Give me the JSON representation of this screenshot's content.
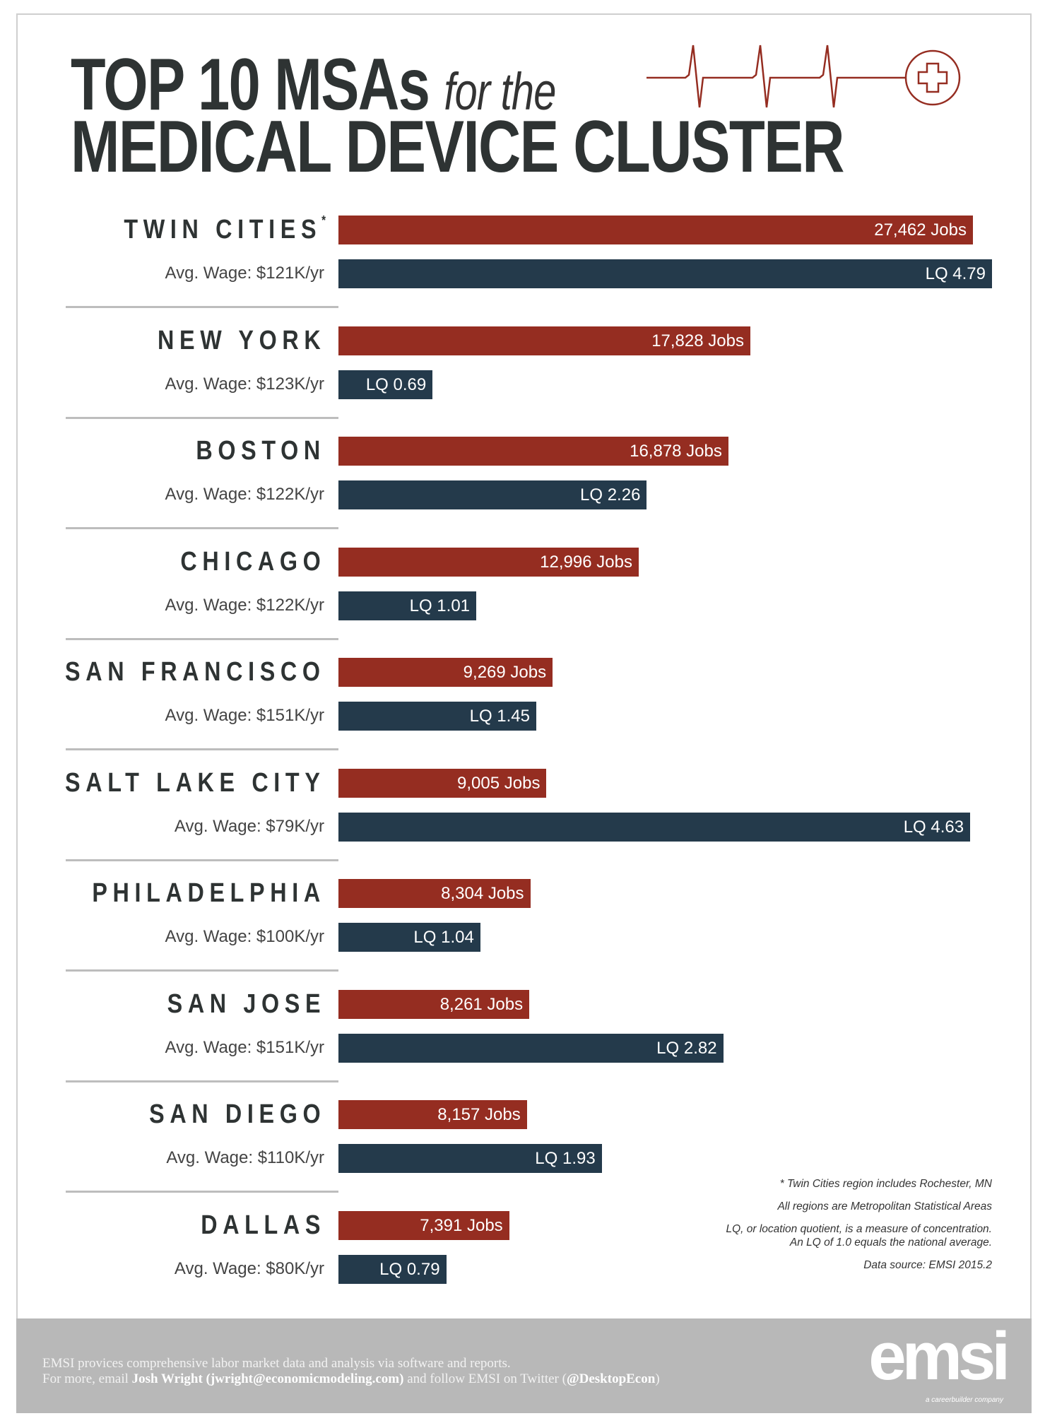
{
  "title": {
    "line1_bold": "TOP 10 MSAs",
    "line1_italic": "for the",
    "line2": "MEDICAL DEVICE CLUSTER"
  },
  "colors": {
    "jobs": "#952d21",
    "lq": "#243a4b",
    "text": "#2e3333"
  },
  "chart_data": {
    "type": "bar",
    "categories": [
      "TWIN CITIES",
      "NEW YORK",
      "BOSTON",
      "CHICAGO",
      "SAN FRANCISCO",
      "SALT LAKE CITY",
      "PHILADELPHIA",
      "SAN JOSE",
      "SAN DIEGO",
      "DALLAS"
    ],
    "series": [
      {
        "name": "Jobs",
        "values": [
          27462,
          17828,
          16878,
          12996,
          9269,
          9005,
          8304,
          8261,
          8157,
          7391
        ]
      },
      {
        "name": "LQ",
        "values": [
          4.79,
          0.69,
          2.26,
          1.01,
          1.45,
          4.63,
          1.04,
          2.82,
          1.93,
          0.79
        ]
      }
    ],
    "rows": [
      {
        "city": "TWIN CITIES",
        "mark": "*",
        "wage": "Avg. Wage: $121K/yr",
        "jobs_label": "27,462 Jobs",
        "lq_label": "LQ 4.79"
      },
      {
        "city": "NEW YORK",
        "mark": "",
        "wage": "Avg. Wage: $123K/yr",
        "jobs_label": "17,828 Jobs",
        "lq_label": "LQ 0.69"
      },
      {
        "city": "BOSTON",
        "mark": "",
        "wage": "Avg. Wage: $122K/yr",
        "jobs_label": "16,878 Jobs",
        "lq_label": "LQ 2.26"
      },
      {
        "city": "CHICAGO",
        "mark": "",
        "wage": "Avg. Wage: $122K/yr",
        "jobs_label": "12,996 Jobs",
        "lq_label": "LQ 1.01"
      },
      {
        "city": "SAN FRANCISCO",
        "mark": "",
        "wage": "Avg. Wage: $151K/yr",
        "jobs_label": "9,269 Jobs",
        "lq_label": "LQ 1.45"
      },
      {
        "city": "SALT LAKE CITY",
        "mark": "",
        "wage": "Avg. Wage: $79K/yr",
        "jobs_label": "9,005 Jobs",
        "lq_label": "LQ  4.63"
      },
      {
        "city": "PHILADELPHIA",
        "mark": "",
        "wage": "Avg. Wage: $100K/yr",
        "jobs_label": "8,304 Jobs",
        "lq_label": "LQ  1.04"
      },
      {
        "city": "SAN JOSE",
        "mark": "",
        "wage": "Avg. Wage: $151K/yr",
        "jobs_label": "8,261 Jobs",
        "lq_label": "LQ  2.82"
      },
      {
        "city": "SAN DIEGO",
        "mark": "",
        "wage": "Avg. Wage: $110K/yr",
        "jobs_label": "8,157 Jobs",
        "lq_label": "LQ  1.93"
      },
      {
        "city": "DALLAS",
        "mark": "",
        "wage": "Avg. Wage: $80K/yr",
        "jobs_label": "7,391 Jobs",
        "lq_label": "LQ  0.79"
      }
    ]
  },
  "notes": {
    "twin_cities": "* Twin Cities region includes Rochester, MN",
    "msa": "All regions are Metropolitan Statistical Areas",
    "lq_line1": "LQ, or location quotient, is a measure of concentration.",
    "lq_line2": "An LQ of 1.0 equals the national average.",
    "source": "Data source: EMSI 2015.2"
  },
  "footer": {
    "line1": "EMSI provices comprehensive labor market data and analysis via software and reports.",
    "line2_a": "For more, email ",
    "contact": "Josh Wright (jwright@economicmodeling.com)",
    "line2_b": " and follow EMSI on Twitter (",
    "twitter": "@DesktopEcon",
    "line2_c": ")",
    "logo": "emsi",
    "tagline": "a careerbuilder company"
  }
}
